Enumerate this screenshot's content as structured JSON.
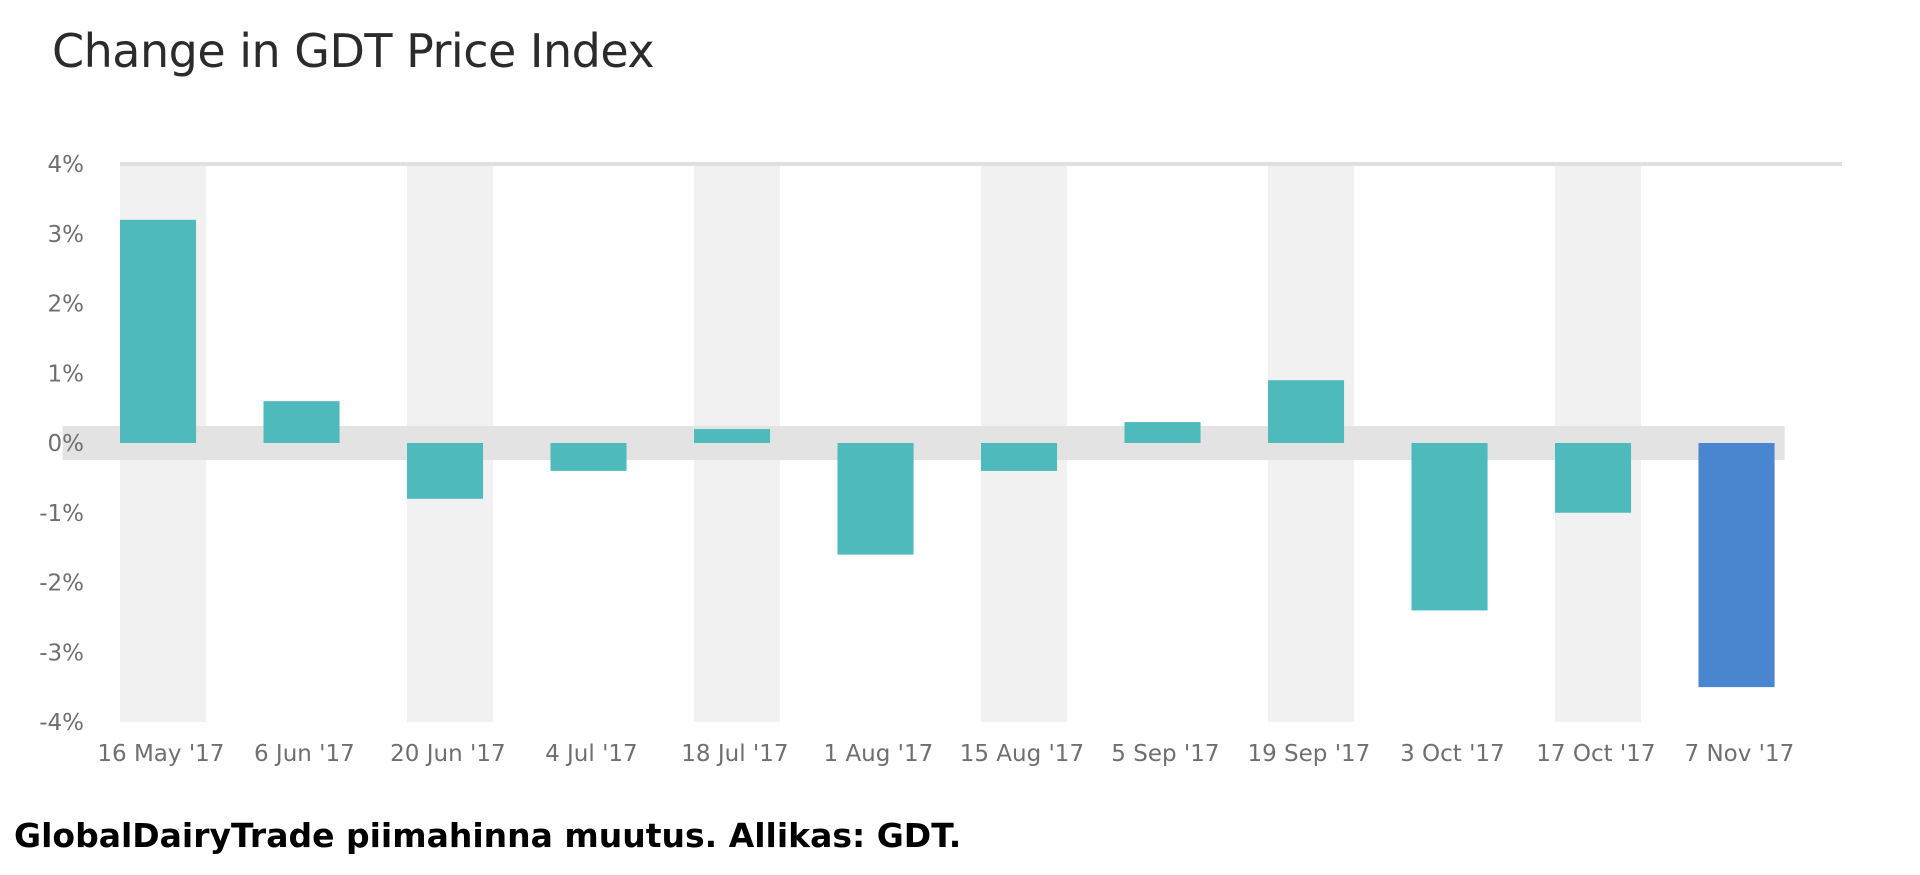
{
  "chart_data": {
    "type": "bar",
    "title": "Change in GDT Price Index",
    "xlabel": "",
    "ylabel": "",
    "categories": [
      "16 May '17",
      "6 Jun '17",
      "20 Jun '17",
      "4 Jul '17",
      "18 Jul '17",
      "1 Aug '17",
      "15 Aug '17",
      "5 Sep '17",
      "19 Sep '17",
      "3 Oct '17",
      "17 Oct '17",
      "7 Nov '17"
    ],
    "values": [
      3.2,
      0.6,
      -0.8,
      -0.4,
      0.2,
      -1.6,
      -0.4,
      0.3,
      0.9,
      -2.4,
      -1.0,
      -3.5
    ],
    "ylim": [
      -4,
      4
    ],
    "yticks": [
      4,
      3,
      2,
      1,
      0,
      -1,
      -2,
      -3,
      -4
    ],
    "ytick_labels": [
      "4%",
      "3%",
      "2%",
      "1%",
      "0%",
      "-1%",
      "-2%",
      "-3%",
      "-4%"
    ],
    "grid": false,
    "colors": {
      "bar": "#4fbabb",
      "highlight_bar": "#4a86d0",
      "band": "#f1f1f1",
      "zero_band": "#e3e3e3",
      "axis_text": "#6f6f6f",
      "top_line": "#e0e0e0"
    },
    "highlight_index": 11
  },
  "caption": "GlobalDairyTrade piimahinna muutus. Allikas: GDT."
}
